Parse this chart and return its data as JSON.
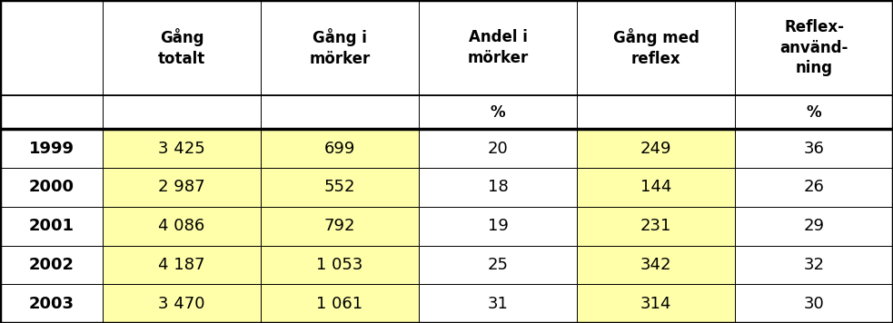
{
  "headers_row1": [
    "",
    "Gång\ntotalt",
    "Gång i\nmörker",
    "Andel i\nmörker",
    "Gång med\nreflex",
    "Reflex-\nanvänd-\nning"
  ],
  "headers_row2": [
    "",
    "",
    "",
    "%",
    "",
    "%"
  ],
  "rows": [
    [
      "1999",
      "3 425",
      "699",
      "20",
      "249",
      "36"
    ],
    [
      "2000",
      "2 987",
      "552",
      "18",
      "144",
      "26"
    ],
    [
      "2001",
      "4 086",
      "792",
      "19",
      "231",
      "29"
    ],
    [
      "2002",
      "4 187",
      "1 053",
      "25",
      "342",
      "32"
    ],
    [
      "2003",
      "3 470",
      "1 061",
      "31",
      "314",
      "30"
    ]
  ],
  "highlight_color": "#FFFFAA",
  "white_color": "#FFFFFF",
  "border_color": "#000000",
  "text_color": "#000000",
  "highlight_data_cols": [
    1,
    2,
    4
  ],
  "col_weights": [
    0.115,
    0.177,
    0.177,
    0.177,
    0.177,
    0.177
  ],
  "row_weights": [
    0.295,
    0.105,
    0.12,
    0.12,
    0.12,
    0.12,
    0.12
  ],
  "header_fontsize": 12,
  "data_fontsize": 13,
  "unit_fontsize": 12
}
